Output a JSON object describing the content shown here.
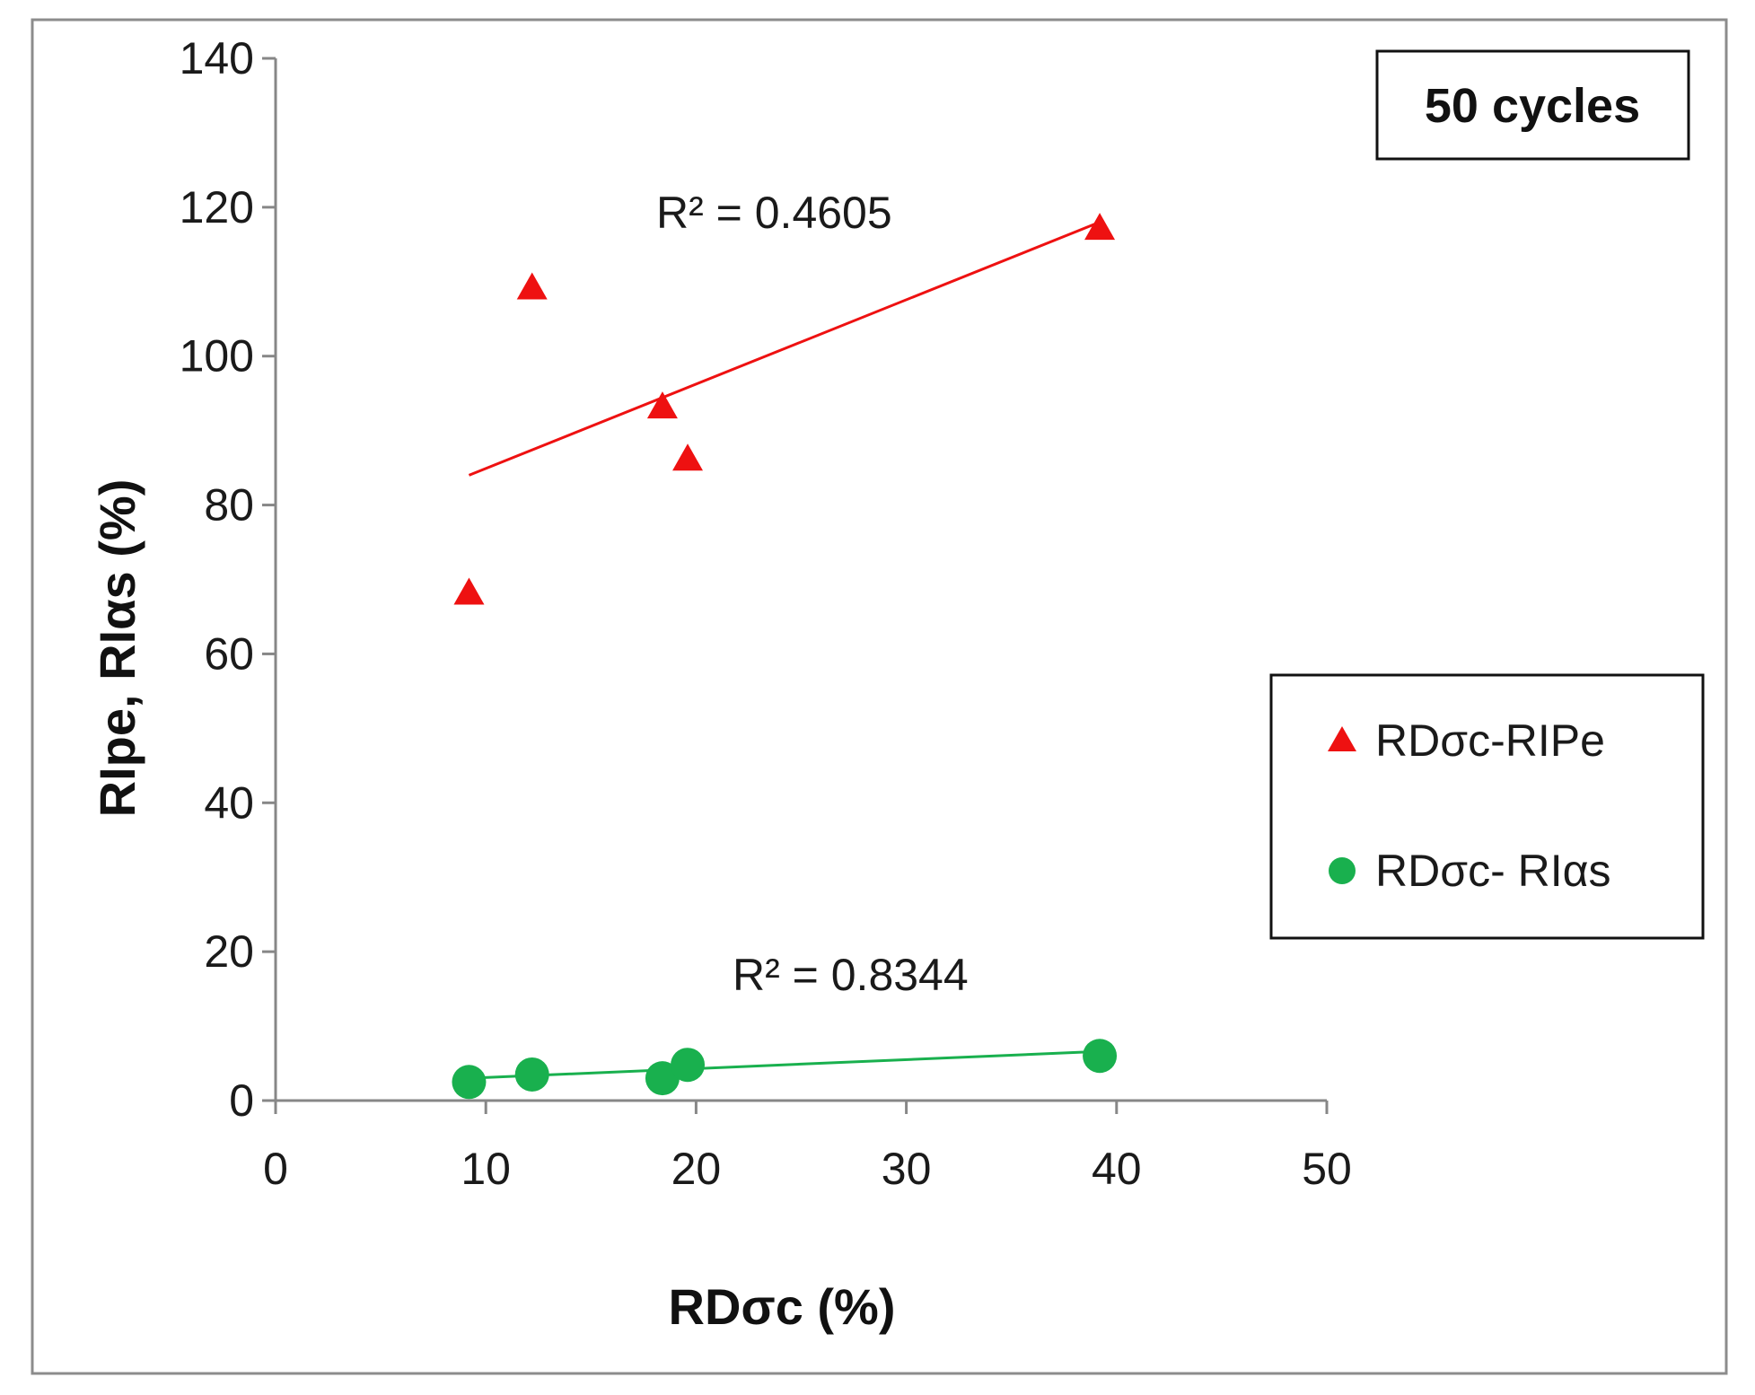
{
  "chart_data": {
    "type": "scatter",
    "annotation_box": "50 cycles",
    "xlabel": "RDσc (%)",
    "ylabel": "RIpe, RIαs (%)",
    "xlim": [
      0,
      50
    ],
    "ylim": [
      0,
      140
    ],
    "x_ticks": [
      0,
      10,
      20,
      30,
      40,
      50
    ],
    "y_ticks": [
      0,
      20,
      40,
      60,
      80,
      100,
      120,
      140
    ],
    "legend_position": "middle-right",
    "series": [
      {
        "name": "RDσc-RIPe",
        "marker": "triangle",
        "color": "#ee1111",
        "points": [
          {
            "x": 9.2,
            "y": 68
          },
          {
            "x": 12.2,
            "y": 109
          },
          {
            "x": 18.4,
            "y": 93
          },
          {
            "x": 19.6,
            "y": 86
          },
          {
            "x": 39.2,
            "y": 117
          }
        ],
        "trendline": {
          "x": [
            9.2,
            39.2
          ],
          "y": [
            84,
            118
          ]
        },
        "r2_label": "R² = 0.4605"
      },
      {
        "name": "RDσc- RIαs",
        "marker": "circle",
        "color": "#19b04e",
        "points": [
          {
            "x": 9.2,
            "y": 2.5
          },
          {
            "x": 12.2,
            "y": 3.5
          },
          {
            "x": 18.4,
            "y": 3.0
          },
          {
            "x": 19.6,
            "y": 4.8
          },
          {
            "x": 39.2,
            "y": 6.0
          }
        ],
        "trendline": {
          "x": [
            9.2,
            39.2
          ],
          "y": [
            3.0,
            6.6
          ]
        },
        "r2_label": "R² = 0.8344"
      }
    ]
  }
}
